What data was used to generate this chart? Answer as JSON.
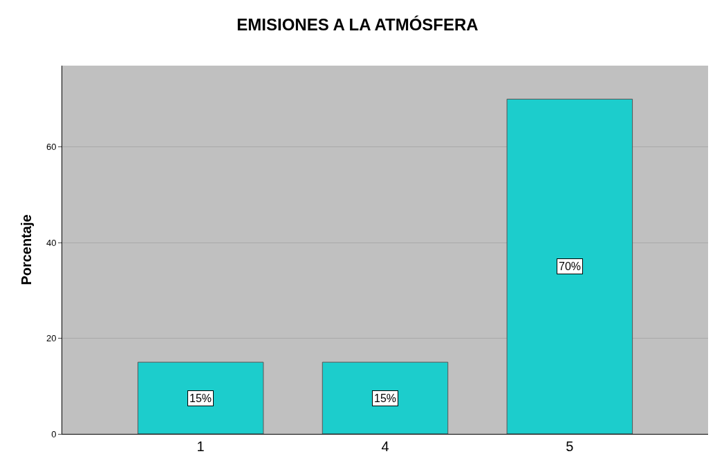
{
  "chart_data": {
    "type": "bar",
    "title": "EMISIONES A LA ATMÓSFERA",
    "ylabel": "Porcentaje",
    "categories": [
      "1",
      "4",
      "5"
    ],
    "values": [
      15,
      15,
      70
    ],
    "value_labels": [
      "15%",
      "15%",
      "70%"
    ],
    "color": "#1ccdcc",
    "ylim": [
      0,
      77
    ],
    "yticks": [
      0,
      20,
      40,
      60
    ],
    "grid": "y",
    "legend": false
  }
}
